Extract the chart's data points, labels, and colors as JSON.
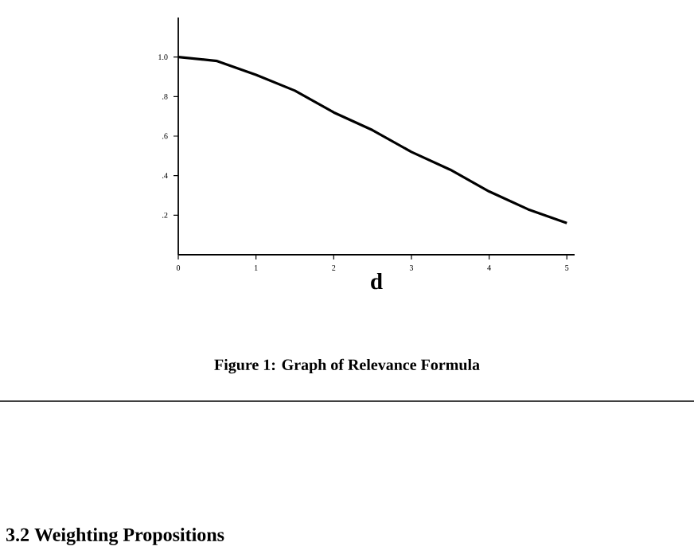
{
  "chart_data": {
    "type": "line",
    "title": "Figure 1: Graph of Relevance Formula",
    "xlabel": "d",
    "x": [
      0,
      0.5,
      1,
      1.5,
      2,
      2.5,
      3,
      3.5,
      4,
      4.5,
      5
    ],
    "values": [
      1.0,
      0.98,
      0.91,
      0.83,
      0.72,
      0.63,
      0.52,
      0.43,
      0.32,
      0.23,
      0.16
    ],
    "color": "#000000",
    "xlim": [
      0,
      5.1
    ],
    "ylim": [
      0,
      1.2
    ],
    "xticks": [
      0,
      1,
      2,
      3,
      4,
      5
    ],
    "yticks": [
      {
        "value": 0.2,
        "label": ".2"
      },
      {
        "value": 0.4,
        "label": ".4"
      },
      {
        "value": 0.6,
        "label": ".6"
      },
      {
        "value": 0.8,
        "label": ".8"
      },
      {
        "value": 1.0,
        "label": "1.0"
      }
    ],
    "grid": false,
    "marker": "none",
    "line_style": "solid",
    "annotations": [
      "3.2 Weighting Propositions"
    ]
  }
}
